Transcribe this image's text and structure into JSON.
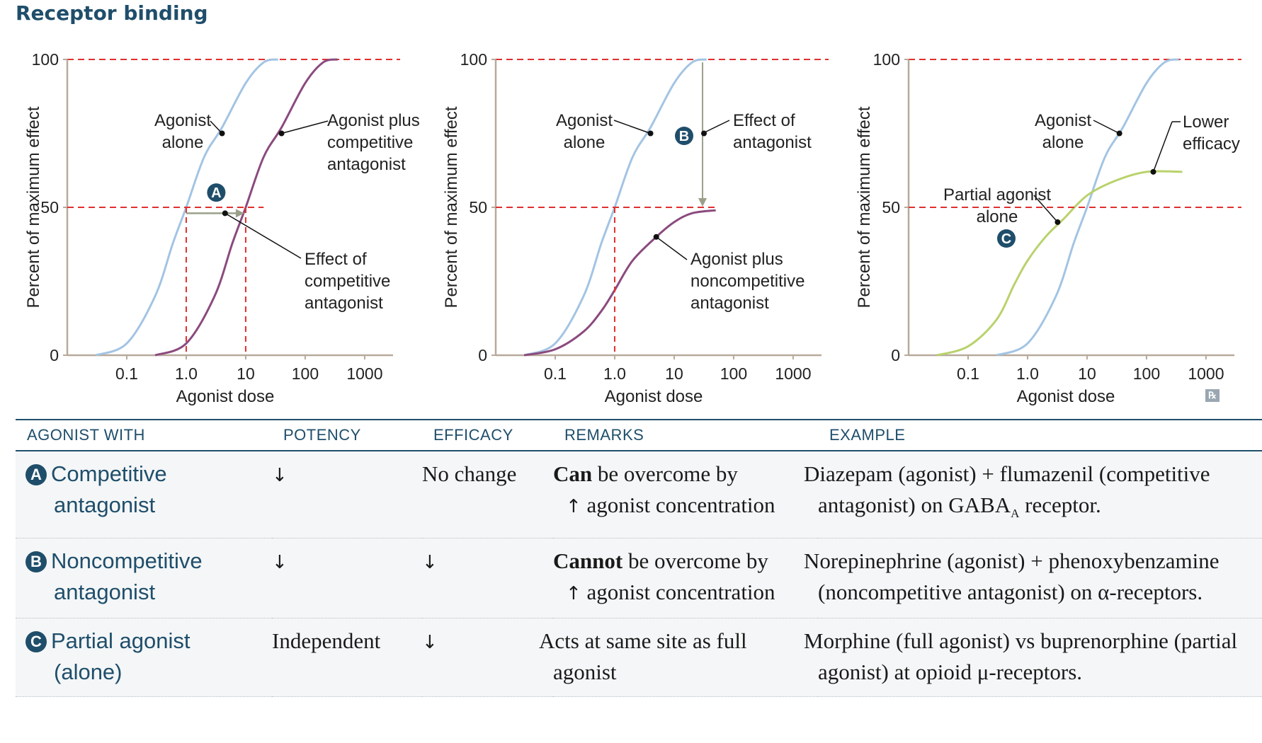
{
  "title": "Receptor binding",
  "colors": {
    "agonist_alone": "#a3c4e3",
    "antagonist_curve": "#8b4a7e",
    "partial_agonist": "#b9d26c",
    "reference_dashed": "#e0302f",
    "heading_blue": "#1f4e6b",
    "shift_arrow": "#9aa08a"
  },
  "axis_common": {
    "ylabel": "Percent of maximum effect",
    "xlabel": "Agonist dose",
    "y_ticks": [
      "0",
      "50",
      "100"
    ],
    "x_ticks": [
      "0.1",
      "1.0",
      "10",
      "100",
      "1000"
    ]
  },
  "chart_data": [
    {
      "type": "line",
      "xscale": "log",
      "xlim": [
        0.01,
        3000
      ],
      "ylim": [
        0,
        100
      ],
      "ylabel": "Percent of maximum effect",
      "xlabel": "Agonist dose",
      "grid": false,
      "series": [
        {
          "name": "Agonist alone",
          "color": "#a3c4e3",
          "x": [
            0.03,
            0.1,
            0.3,
            0.6,
            1.0,
            2.0,
            4.0,
            10,
            20,
            35
          ],
          "y": [
            0,
            4,
            20,
            38,
            50,
            67,
            77,
            92,
            99,
            100
          ]
        },
        {
          "name": "Agonist plus competitive antagonist",
          "color": "#8b4a7e",
          "x": [
            0.3,
            1.0,
            3.0,
            6.0,
            10,
            20,
            40,
            100,
            200,
            350
          ],
          "y": [
            0,
            4,
            20,
            38,
            50,
            67,
            77,
            92,
            99,
            100
          ]
        }
      ],
      "annotations": [
        {
          "label": "Agonist alone",
          "x": 4.0,
          "y": 75
        },
        {
          "label": "Agonist plus competitive antagonist",
          "x": 50,
          "y": 75
        },
        {
          "label": "Effect of competitive antagonist",
          "x": 6,
          "y": 48
        },
        {
          "badge": "A"
        }
      ]
    },
    {
      "type": "line",
      "xscale": "log",
      "xlim": [
        0.01,
        3000
      ],
      "ylim": [
        0,
        100
      ],
      "ylabel": "Percent of maximum effect",
      "xlabel": "Agonist dose",
      "grid": false,
      "series": [
        {
          "name": "Agonist alone",
          "color": "#a3c4e3",
          "x": [
            0.03,
            0.1,
            0.3,
            0.6,
            1.0,
            2.0,
            4.0,
            10,
            20,
            35
          ],
          "y": [
            0,
            4,
            20,
            38,
            50,
            67,
            77,
            92,
            99,
            100
          ]
        },
        {
          "name": "Agonist plus noncompetitive antagonist",
          "color": "#8b4a7e",
          "x": [
            0.03,
            0.1,
            0.3,
            0.6,
            1.0,
            2.0,
            5.0,
            10,
            20,
            50
          ],
          "y": [
            0,
            2,
            8,
            15,
            22,
            32,
            40,
            45,
            48,
            49
          ]
        }
      ],
      "annotations": [
        {
          "label": "Agonist alone",
          "x": 4.0,
          "y": 75
        },
        {
          "label": "Effect of antagonist",
          "x": 35,
          "y": 75
        },
        {
          "label": "Agonist plus noncompetitive antagonist",
          "x": 5,
          "y": 40
        },
        {
          "badge": "B"
        }
      ]
    },
    {
      "type": "line",
      "xscale": "log",
      "xlim": [
        0.01,
        3000
      ],
      "ylim": [
        0,
        100
      ],
      "ylabel": "Percent of maximum effect",
      "xlabel": "Agonist dose",
      "grid": false,
      "series": [
        {
          "name": "Agonist alone",
          "color": "#a3c4e3",
          "x": [
            0.3,
            1.0,
            3.0,
            6.0,
            10,
            20,
            40,
            100,
            200,
            350
          ],
          "y": [
            0,
            4,
            20,
            38,
            50,
            67,
            77,
            92,
            99,
            100
          ]
        },
        {
          "name": "Partial agonist alone",
          "color": "#b9d26c",
          "x": [
            0.03,
            0.1,
            0.3,
            0.6,
            1.0,
            2.0,
            4.0,
            10,
            30,
            100,
            400
          ],
          "y": [
            0,
            3,
            12,
            24,
            32,
            40,
            46,
            54,
            59,
            62,
            62
          ]
        }
      ],
      "annotations": [
        {
          "label": "Agonist alone",
          "x": 40,
          "y": 75
        },
        {
          "label": "Lower efficacy",
          "x": 100,
          "y": 62
        },
        {
          "label": "Partial agonist alone",
          "x": 4,
          "y": 46
        },
        {
          "badge": "C"
        }
      ]
    }
  ],
  "figure_text": {
    "p1_agonist_alone": [
      "Agonist",
      "alone"
    ],
    "p1_agonist_plus": [
      "Agonist plus",
      "competitive",
      "antagonist"
    ],
    "p1_effect": [
      "Effect of",
      "competitive",
      "antagonist"
    ],
    "p2_agonist_alone": [
      "Agonist",
      "alone"
    ],
    "p2_effect": [
      "Effect of",
      "antagonist"
    ],
    "p2_agonist_plus": [
      "Agonist plus",
      "noncompetitive",
      "antagonist"
    ],
    "p3_agonist_alone": [
      "Agonist",
      "alone"
    ],
    "p3_lower": [
      "Lower",
      "efficacy"
    ],
    "p3_partial": [
      "Partial agonist",
      "alone"
    ],
    "badges": [
      "A",
      "B",
      "C"
    ]
  },
  "rx_badge": "℞",
  "table": {
    "headers": [
      "AGONIST WITH",
      "POTENCY",
      "EFFICACY",
      "REMARKS",
      "EXAMPLE"
    ],
    "rows": [
      {
        "badge": "A",
        "agonist_line1": "Competitive",
        "agonist_line2": "antagonist",
        "potency": "↓",
        "efficacy": "No change",
        "remark_bold": "Can",
        "remark_rest": " be overcome by",
        "remark_arrow": "↑",
        "remark_line2": " agonist concentration",
        "example_pre": "Diazepam (agonist) + flumazenil (competitive antagonist) on GABA",
        "example_sub": "A",
        "example_post": " receptor."
      },
      {
        "badge": "B",
        "agonist_line1": "Noncompetitive",
        "agonist_line2": "antagonist",
        "potency": "↓",
        "efficacy": "↓",
        "remark_bold": "Cannot",
        "remark_rest": " be overcome by",
        "remark_arrow": "↑",
        "remark_line2": " agonist concentration",
        "example": "Norepinephrine (agonist) + phenoxybenzamine (noncompetitive antagonist) on α-receptors."
      },
      {
        "badge": "C",
        "agonist_line1": "Partial agonist",
        "agonist_line2": "(alone)",
        "potency": "Independent",
        "efficacy": "↓",
        "remark": "Acts at same site as full agonist",
        "example": "Morphine (full agonist) vs buprenorphine (partial agonist) at opioid μ-receptors."
      }
    ]
  }
}
